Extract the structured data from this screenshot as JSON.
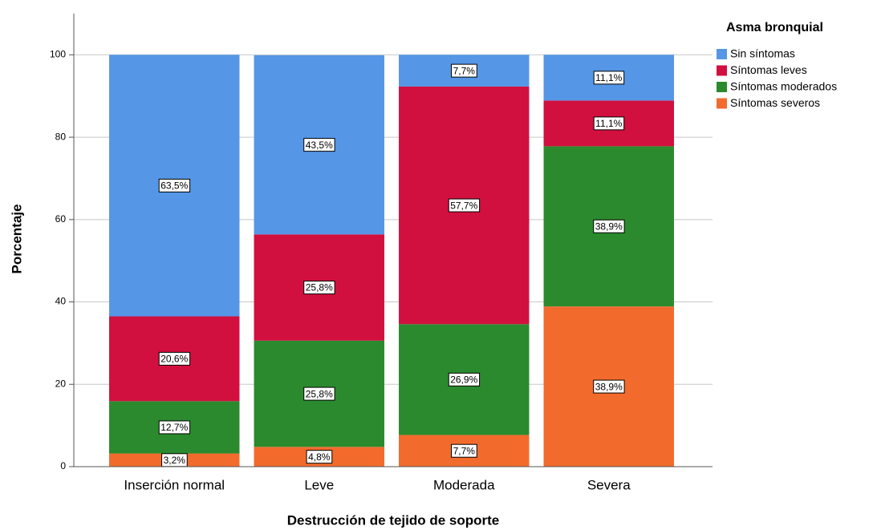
{
  "chart_data": {
    "type": "stacked_bar",
    "x_label": "Destrucción de tejido de soporte",
    "y_label": "Porcentaje",
    "legend_title": "Asma bronquial",
    "legend": "right",
    "grid": true,
    "categories": [
      "Inserción normal",
      "Leve",
      "Moderada",
      "Severa"
    ],
    "ylim": [
      0,
      110
    ],
    "yticks": [
      0,
      20,
      40,
      60,
      80,
      100
    ],
    "series": [
      {
        "name": "Sin síntomas",
        "color": "#5596e6",
        "values": [
          63.5,
          43.5,
          7.7,
          11.1
        ],
        "value_labels": [
          "63,5%",
          "43,5%",
          "7,7%",
          "11,1%"
        ]
      },
      {
        "name": "Síntomas leves",
        "color": "#d1103f",
        "values": [
          20.6,
          25.8,
          57.7,
          11.1
        ],
        "value_labels": [
          "20,6%",
          "25,8%",
          "57,7%",
          "11,1%"
        ]
      },
      {
        "name": "Síntomas moderados",
        "color": "#2b8a2e",
        "values": [
          12.7,
          25.8,
          26.9,
          38.9
        ],
        "value_labels": [
          "12,7%",
          "25,8%",
          "26,9%",
          "38,9%"
        ]
      },
      {
        "name": "Síntomas severos",
        "color": "#f26b2d",
        "values": [
          3.2,
          4.8,
          7.7,
          38.9
        ],
        "value_labels": [
          "3,2%",
          "4,8%",
          "7,7%",
          "38,9%"
        ]
      }
    ]
  }
}
